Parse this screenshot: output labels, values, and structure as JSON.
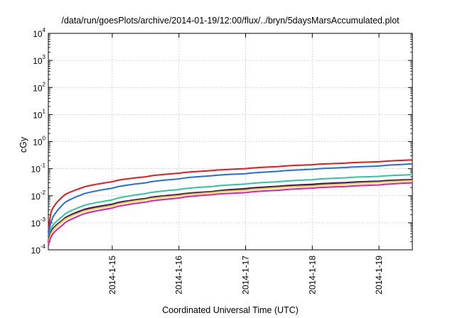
{
  "chart_data": {
    "type": "line",
    "title": "/data/run/goesPlots/archive/2014-01-19/12:00/flux/../bryn/5daysMarsAccumulated.plot",
    "xlabel": "Coordinated Universal Time (UTC)",
    "ylabel": "cGy",
    "xscale": "time",
    "yscale": "log",
    "xlim": [
      "2014-01-14T01:00",
      "2014-01-19T12:00"
    ],
    "ylim": [
      0.0001,
      10000
    ],
    "grid": true,
    "legend": "none",
    "x_ticks": [
      "2014-1-15",
      "2014-1-16",
      "2014-1-17",
      "2014-1-18",
      "2014-1-19"
    ],
    "y_ticks": [
      {
        "base": "10",
        "exp": "-4"
      },
      {
        "base": "10",
        "exp": "-3"
      },
      {
        "base": "10",
        "exp": "-2"
      },
      {
        "base": "10",
        "exp": "-1"
      },
      {
        "base": "10",
        "exp": "0"
      },
      {
        "base": "10",
        "exp": "1"
      },
      {
        "base": "10",
        "exp": "2"
      },
      {
        "base": "10",
        "exp": "3"
      },
      {
        "base": "10",
        "exp": "4"
      }
    ],
    "x": [
      "2014-01-14T01:00",
      "2014-01-14T02:00",
      "2014-01-14T06:00",
      "2014-01-14T12:00",
      "2014-01-15T00:00",
      "2014-01-15T12:00",
      "2014-01-16T00:00",
      "2014-01-16T12:00",
      "2014-01-17T00:00",
      "2014-01-17T12:00",
      "2014-01-18T00:00",
      "2014-01-18T12:00",
      "2014-01-19T00:00",
      "2014-01-19T12:00"
    ],
    "series": [
      {
        "color": "#e41a1c",
        "values": [
          0.0004,
          0.0025,
          0.009,
          0.018,
          0.033,
          0.05,
          0.068,
          0.085,
          0.1,
          0.12,
          0.14,
          0.16,
          0.18,
          0.21
        ]
      },
      {
        "color": "#1f6fe0",
        "values": [
          0.0003,
          0.0011,
          0.0045,
          0.01,
          0.019,
          0.03,
          0.042,
          0.055,
          0.065,
          0.08,
          0.095,
          0.11,
          0.125,
          0.15
        ]
      },
      {
        "color": "#2ec4a0",
        "values": [
          0.0002,
          0.0006,
          0.0017,
          0.0037,
          0.007,
          0.012,
          0.017,
          0.022,
          0.027,
          0.033,
          0.039,
          0.046,
          0.052,
          0.06
        ]
      },
      {
        "color": "#3a1c71",
        "values": [
          0.00018,
          0.00045,
          0.0012,
          0.0026,
          0.0048,
          0.0078,
          0.011,
          0.014,
          0.018,
          0.022,
          0.026,
          0.03,
          0.034,
          0.039
        ]
      },
      {
        "color": "#f2d024",
        "values": [
          0.00016,
          0.0004,
          0.0011,
          0.0023,
          0.0043,
          0.0072,
          0.01,
          0.013,
          0.016,
          0.02,
          0.023,
          0.027,
          0.031,
          0.036
        ]
      },
      {
        "color": "#e619b4",
        "values": [
          0.00014,
          0.0003,
          0.0008,
          0.0018,
          0.0035,
          0.0058,
          0.0082,
          0.011,
          0.013,
          0.016,
          0.019,
          0.022,
          0.025,
          0.03
        ]
      }
    ]
  }
}
